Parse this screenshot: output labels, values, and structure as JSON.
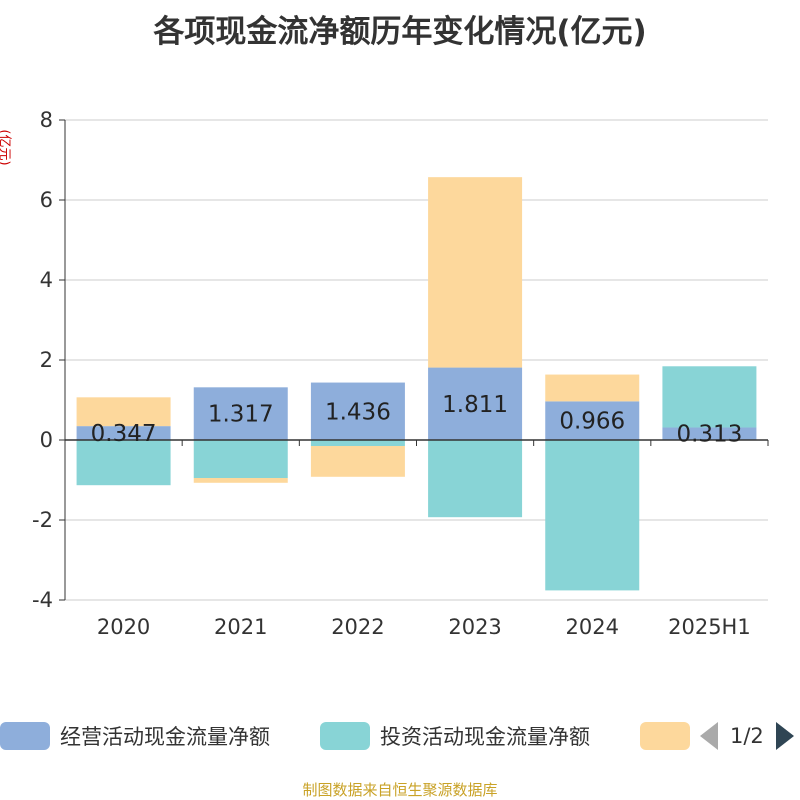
{
  "chart_data": {
    "type": "bar",
    "stacked": true,
    "title": "各项现金流净额历年变化情况(亿元)",
    "ylabel": "(亿元)",
    "xlabel": "",
    "categories": [
      "2020",
      "2021",
      "2022",
      "2023",
      "2024",
      "2025H1"
    ],
    "ylim": [
      -4,
      8
    ],
    "yticks": [
      -4,
      -2,
      0,
      2,
      4,
      6,
      8
    ],
    "grid": true,
    "series": [
      {
        "name": "经营活动现金流量净额",
        "color": "#8eaedb",
        "values": [
          0.347,
          1.317,
          1.436,
          1.811,
          0.966,
          0.313
        ],
        "labels": true
      },
      {
        "name": "投资活动现金流量净额",
        "color": "#88d4d6",
        "values": [
          -1.13,
          -0.95,
          -0.15,
          -1.93,
          -3.76,
          1.53
        ],
        "labels": false
      },
      {
        "name": "",
        "color": "#fdd89c",
        "values": [
          0.72,
          -0.12,
          -0.77,
          4.76,
          0.67,
          0.0
        ],
        "labels": false
      }
    ],
    "legend": {
      "position": "bottom",
      "page": "1/2"
    }
  },
  "source": "制图数据来自恒生聚源数据库"
}
